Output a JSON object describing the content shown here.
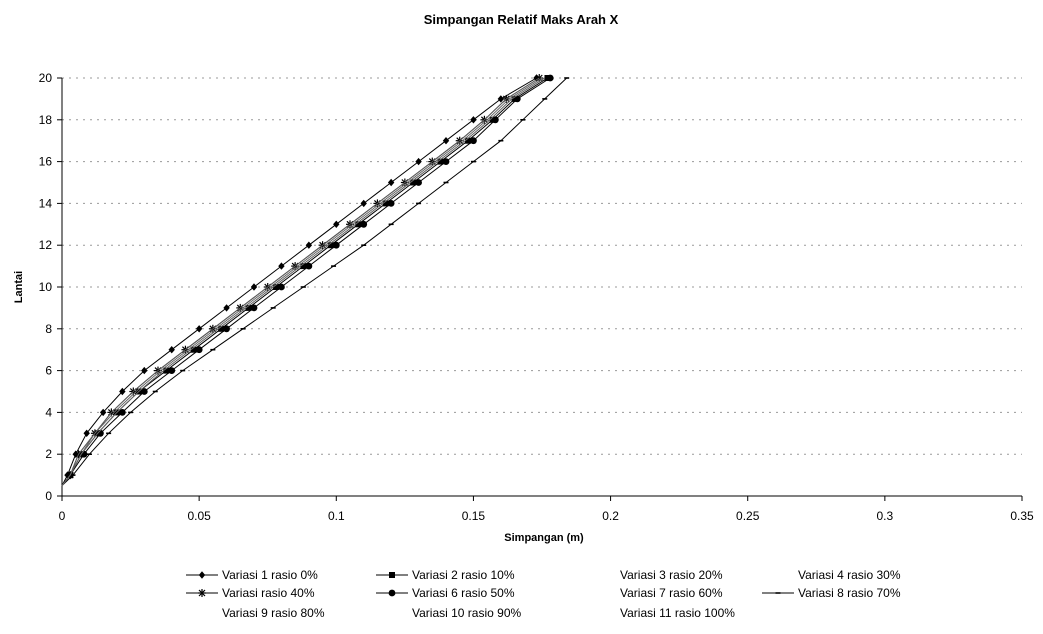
{
  "chart_data": {
    "type": "line",
    "title": "Simpangan Relatif Maks Arah X",
    "xlabel": "Simpangan (m)",
    "ylabel": "Lantai",
    "xlim": [
      0,
      0.35
    ],
    "ylim": [
      0,
      20
    ],
    "x_ticks": [
      "0",
      "0.05",
      "0.1",
      "0.15",
      "0.2",
      "0.25",
      "0.3",
      "0.35"
    ],
    "y_ticks": [
      "0",
      "2",
      "4",
      "6",
      "8",
      "10",
      "12",
      "14",
      "16",
      "18",
      "20"
    ],
    "grid": "horizontal-dotted",
    "legend_position": "bottom",
    "y_levels": [
      0.5,
      1,
      2,
      3,
      4,
      5,
      6,
      7,
      8,
      9,
      10,
      11,
      12,
      13,
      14,
      15,
      16,
      17,
      18,
      19,
      20
    ],
    "series": [
      {
        "name": "Variasi 1 rasio 0%",
        "marker": "diamond",
        "x": [
          0,
          0.002,
          0.005,
          0.009,
          0.015,
          0.022,
          0.03,
          0.04,
          0.05,
          0.06,
          0.07,
          0.08,
          0.09,
          0.1,
          0.11,
          0.12,
          0.13,
          0.14,
          0.15,
          0.16,
          0.173
        ]
      },
      {
        "name": "Variasi 2 rasio 10%",
        "marker": "square",
        "x": [
          0,
          0.003,
          0.007,
          0.013,
          0.02,
          0.028,
          0.038,
          0.048,
          0.058,
          0.068,
          0.078,
          0.088,
          0.098,
          0.108,
          0.118,
          0.128,
          0.138,
          0.148,
          0.157,
          0.165,
          0.177
        ]
      },
      {
        "name": "Variasi 3 rasio 20%",
        "marker": "none",
        "x": [
          0,
          0.003,
          0.007,
          0.013,
          0.02,
          0.028,
          0.037,
          0.047,
          0.057,
          0.067,
          0.077,
          0.087,
          0.097,
          0.107,
          0.117,
          0.127,
          0.137,
          0.147,
          0.156,
          0.164,
          0.176
        ]
      },
      {
        "name": "Variasi 4 rasio 30%",
        "marker": "none",
        "x": [
          0,
          0.003,
          0.007,
          0.012,
          0.019,
          0.027,
          0.036,
          0.046,
          0.056,
          0.066,
          0.076,
          0.086,
          0.096,
          0.106,
          0.116,
          0.126,
          0.136,
          0.146,
          0.155,
          0.163,
          0.175
        ]
      },
      {
        "name": "Variasi rasio 40%",
        "marker": "star",
        "x": [
          0,
          0.003,
          0.006,
          0.012,
          0.018,
          0.026,
          0.035,
          0.045,
          0.055,
          0.065,
          0.075,
          0.085,
          0.095,
          0.105,
          0.115,
          0.125,
          0.135,
          0.145,
          0.154,
          0.162,
          0.174
        ]
      },
      {
        "name": "Variasi 6 rasio 50%",
        "marker": "circle",
        "x": [
          0,
          0.003,
          0.008,
          0.014,
          0.022,
          0.03,
          0.04,
          0.05,
          0.06,
          0.07,
          0.08,
          0.09,
          0.1,
          0.11,
          0.12,
          0.13,
          0.14,
          0.15,
          0.158,
          0.166,
          0.178
        ]
      },
      {
        "name": "Variasi 7 rasio 60%",
        "marker": "none",
        "x": [
          0,
          0.003,
          0.007,
          0.013,
          0.02,
          0.028,
          0.037,
          0.047,
          0.057,
          0.067,
          0.077,
          0.087,
          0.097,
          0.107,
          0.117,
          0.127,
          0.137,
          0.147,
          0.156,
          0.164,
          0.176
        ]
      },
      {
        "name": "Variasi 8 rasio 70%",
        "marker": "dash",
        "x": [
          0,
          0.004,
          0.01,
          0.017,
          0.025,
          0.034,
          0.044,
          0.055,
          0.066,
          0.077,
          0.088,
          0.099,
          0.11,
          0.12,
          0.13,
          0.14,
          0.15,
          0.16,
          0.168,
          0.176,
          0.184
        ]
      },
      {
        "name": "Variasi 9 rasio 80%",
        "marker": "none",
        "x": [
          0,
          0.003,
          0.007,
          0.013,
          0.02,
          0.028,
          0.037,
          0.047,
          0.057,
          0.067,
          0.077,
          0.087,
          0.097,
          0.107,
          0.117,
          0.127,
          0.137,
          0.147,
          0.156,
          0.164,
          0.176
        ]
      },
      {
        "name": "Variasi 10 rasio 90%",
        "marker": "none",
        "x": [
          0,
          0.003,
          0.007,
          0.012,
          0.019,
          0.027,
          0.036,
          0.046,
          0.056,
          0.066,
          0.076,
          0.086,
          0.096,
          0.106,
          0.116,
          0.126,
          0.136,
          0.146,
          0.155,
          0.163,
          0.175
        ]
      },
      {
        "name": "Variasi 11 rasio 100%",
        "marker": "none",
        "x": [
          0,
          0.003,
          0.006,
          0.012,
          0.018,
          0.026,
          0.035,
          0.045,
          0.055,
          0.065,
          0.075,
          0.085,
          0.095,
          0.105,
          0.115,
          0.125,
          0.135,
          0.145,
          0.154,
          0.162,
          0.174
        ]
      }
    ]
  }
}
